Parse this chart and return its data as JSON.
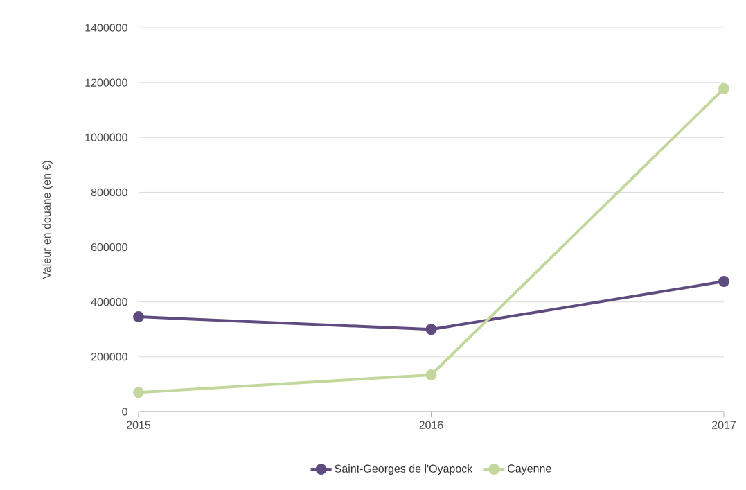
{
  "chart_data": {
    "type": "line",
    "ylabel": "Valeur en douane (en €)",
    "categories": [
      "2015",
      "2016",
      "2017"
    ],
    "series": [
      {
        "name": "Saint-Georges de l'Oyapock",
        "color": "#5f4b7f",
        "values": [
          346000,
          300000,
          475000
        ]
      },
      {
        "name": "Cayenne",
        "color": "#c3d69b",
        "values": [
          70000,
          134000,
          1178000
        ]
      }
    ],
    "ylim": [
      0,
      1400000
    ],
    "yticks": [
      0,
      200000,
      400000,
      600000,
      800000,
      1000000,
      1200000,
      1400000
    ],
    "grid": "y",
    "legend": "bottom",
    "marker": "circle",
    "line_style": "solid"
  }
}
